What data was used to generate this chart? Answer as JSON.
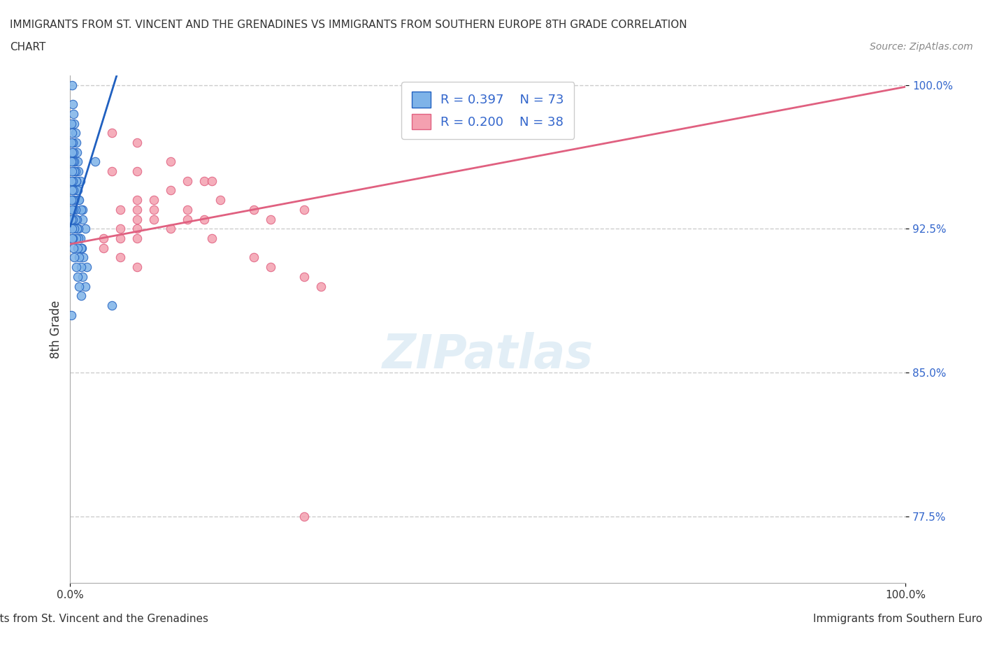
{
  "title_line1": "IMMIGRANTS FROM ST. VINCENT AND THE GRENADINES VS IMMIGRANTS FROM SOUTHERN EUROPE 8TH GRADE CORRELATION",
  "title_line2": "CHART",
  "source": "Source: ZipAtlas.com",
  "ylabel": "8th Grade",
  "xlabel_blue": "Immigrants from St. Vincent and the Grenadines",
  "xlabel_pink": "Immigrants from Southern Europe",
  "legend_R_blue": "R = 0.397",
  "legend_N_blue": "N = 73",
  "legend_R_pink": "R = 0.200",
  "legend_N_pink": "N = 38",
  "color_blue": "#7eb3e8",
  "color_pink": "#f4a0b0",
  "color_line_blue": "#2060c0",
  "color_line_pink": "#e06080",
  "xmin": 0.0,
  "xmax": 1.0,
  "ymin": 0.74,
  "ymax": 1.005,
  "yticks": [
    0.775,
    0.85,
    0.925,
    1.0
  ],
  "ytick_labels": [
    "77.5%",
    "85.0%",
    "92.5%",
    "100.0%"
  ],
  "xticks": [
    0.0,
    1.0
  ],
  "xtick_labels": [
    "0.0%",
    "100.0%"
  ],
  "grid_color": "#cccccc",
  "watermark": "ZIPatlas",
  "blue_scatter_x": [
    0.002,
    0.003,
    0.004,
    0.005,
    0.006,
    0.007,
    0.008,
    0.009,
    0.01,
    0.012,
    0.001,
    0.002,
    0.003,
    0.004,
    0.005,
    0.006,
    0.007,
    0.008,
    0.01,
    0.015,
    0.001,
    0.002,
    0.003,
    0.005,
    0.007,
    0.009,
    0.011,
    0.013,
    0.015,
    0.018,
    0.001,
    0.002,
    0.003,
    0.004,
    0.005,
    0.006,
    0.008,
    0.01,
    0.012,
    0.014,
    0.001,
    0.002,
    0.003,
    0.004,
    0.006,
    0.008,
    0.01,
    0.013,
    0.016,
    0.02,
    0.001,
    0.002,
    0.003,
    0.005,
    0.007,
    0.009,
    0.011,
    0.013,
    0.015,
    0.018,
    0.001,
    0.002,
    0.003,
    0.004,
    0.005,
    0.007,
    0.009,
    0.011,
    0.013,
    0.05,
    0.001,
    0.002,
    0.03
  ],
  "blue_scatter_y": [
    1.0,
    0.99,
    0.985,
    0.98,
    0.975,
    0.97,
    0.965,
    0.96,
    0.955,
    0.95,
    0.98,
    0.975,
    0.97,
    0.965,
    0.96,
    0.955,
    0.95,
    0.945,
    0.94,
    0.935,
    0.97,
    0.965,
    0.96,
    0.955,
    0.95,
    0.945,
    0.94,
    0.935,
    0.93,
    0.925,
    0.96,
    0.955,
    0.95,
    0.945,
    0.94,
    0.935,
    0.93,
    0.925,
    0.92,
    0.915,
    0.95,
    0.945,
    0.94,
    0.935,
    0.93,
    0.925,
    0.92,
    0.915,
    0.91,
    0.905,
    0.94,
    0.935,
    0.93,
    0.925,
    0.92,
    0.915,
    0.91,
    0.905,
    0.9,
    0.895,
    0.93,
    0.925,
    0.92,
    0.915,
    0.91,
    0.905,
    0.9,
    0.895,
    0.89,
    0.885,
    0.88,
    0.92,
    0.96
  ],
  "pink_scatter_x": [
    0.05,
    0.05,
    0.08,
    0.08,
    0.08,
    0.14,
    0.16,
    0.16,
    0.17,
    0.17,
    0.12,
    0.18,
    0.12,
    0.14,
    0.22,
    0.24,
    0.28,
    0.1,
    0.1,
    0.08,
    0.06,
    0.08,
    0.1,
    0.12,
    0.14,
    0.06,
    0.08,
    0.08,
    0.06,
    0.04,
    0.04,
    0.06,
    0.08,
    0.22,
    0.24,
    0.28,
    0.3,
    0.28
  ],
  "pink_scatter_y": [
    0.975,
    0.955,
    0.97,
    0.955,
    0.94,
    0.95,
    0.95,
    0.93,
    0.95,
    0.92,
    0.96,
    0.94,
    0.945,
    0.935,
    0.935,
    0.93,
    0.935,
    0.94,
    0.935,
    0.935,
    0.935,
    0.93,
    0.93,
    0.925,
    0.93,
    0.925,
    0.925,
    0.92,
    0.92,
    0.92,
    0.915,
    0.91,
    0.905,
    0.91,
    0.905,
    0.9,
    0.895,
    0.775
  ],
  "blue_R": 0.397,
  "pink_R": 0.2,
  "blue_N": 73,
  "pink_N": 38
}
